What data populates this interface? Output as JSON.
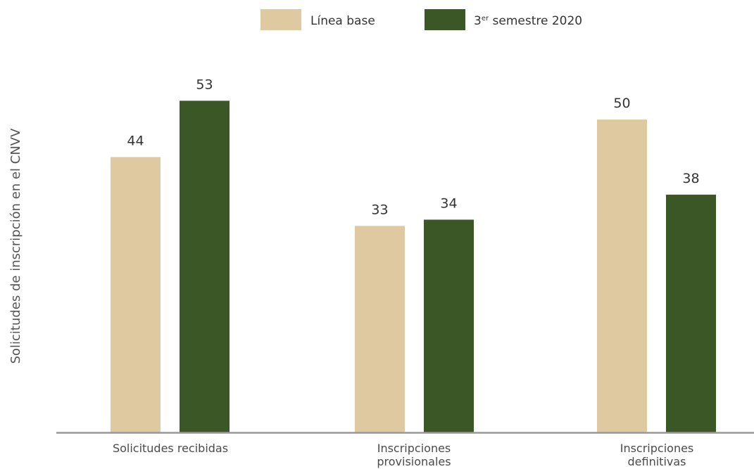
{
  "chart_data": {
    "type": "bar",
    "title": "",
    "xlabel": "",
    "ylabel": "Solicitudes de inscripción en el CNVV",
    "ylim": [
      0,
      53
    ],
    "grid": false,
    "legend_position": "top-center",
    "categories": [
      [
        "Solicitudes recibidas"
      ],
      [
        "Inscripciones",
        "provisionales"
      ],
      [
        "Inscripciones",
        "definitivas"
      ]
    ],
    "series": [
      {
        "name": "Línea base",
        "color": "#dec9a0",
        "values": [
          44,
          33,
          50
        ]
      },
      {
        "name": "3er semestre 2020",
        "name_parts": {
          "main": "3",
          "superscript": "er",
          "rest": " semestre 2020"
        },
        "color": "#3a5725",
        "values": [
          53,
          34,
          38
        ]
      }
    ],
    "axis_color": "#999999"
  }
}
